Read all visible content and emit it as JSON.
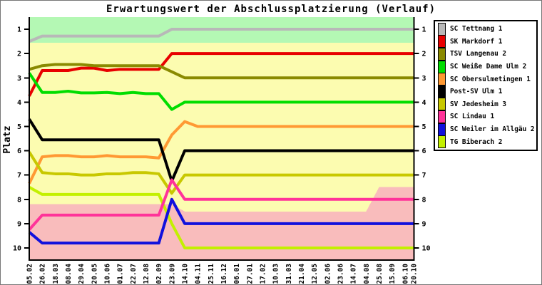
{
  "title": "Erwartungswert der Abschlussplatzierung (Verlauf)",
  "ylabel": "Platz",
  "chart_data": {
    "type": "line",
    "title": "Erwartungswert der Abschlussplatzierung (Verlauf)",
    "y_axis_label": "Platz",
    "y_inverted": true,
    "ylim_platz": [
      0.5,
      10.5
    ],
    "y_ticks": [
      1,
      2,
      3,
      4,
      5,
      6,
      7,
      8,
      9,
      10
    ],
    "y_ticks_both_sides": true,
    "grid": false,
    "legend_position": "top-right",
    "x_tick_labels": [
      "05.02",
      "26.02",
      "18.03",
      "08.04",
      "29.04",
      "20.05",
      "10.06",
      "01.07",
      "22.07",
      "12.08",
      "02.09",
      "23.09",
      "14.10",
      "04.11",
      "25.11",
      "16.12",
      "06.01",
      "27.01",
      "17.02",
      "10.03",
      "31.03",
      "21.04",
      "12.05",
      "02.06",
      "23.06",
      "14.07",
      "04.08",
      "25.08",
      "15.09",
      "06.10",
      "20.10"
    ],
    "x_day_offsets": [
      0,
      21,
      42,
      63,
      84,
      105,
      126,
      147,
      168,
      189,
      210,
      231,
      252,
      273,
      294,
      315,
      336,
      357,
      378,
      399,
      420,
      441,
      462,
      483,
      504,
      525,
      546,
      567,
      588,
      609,
      623
    ],
    "zones": [
      {
        "name": "midfield-zone",
        "color": "#fcfcb0",
        "from_platz": 0.5,
        "to_platz": 10.5
      },
      {
        "name": "promotion-zone",
        "color": "#b4f8b4",
        "from_platz": 0.5,
        "to_platz": 1.55
      },
      {
        "name": "relegation-zone",
        "color": "#f9bcbc",
        "to_platz": 10.5,
        "top_edge_day_platz": [
          [
            0,
            8.2
          ],
          [
            231,
            8.2
          ],
          [
            252,
            8.5
          ],
          [
            546,
            8.5
          ],
          [
            567,
            7.5
          ],
          [
            623,
            7.5
          ]
        ]
      }
    ],
    "series": [
      {
        "name": "SC Tettnang 1",
        "color": "#b8b8b8",
        "values": [
          1.5,
          1.28,
          1.28,
          1.28,
          1.28,
          1.28,
          1.28,
          1.28,
          1.28,
          1.28,
          1.28,
          1,
          1,
          1,
          1,
          1,
          1,
          1,
          1,
          1,
          1,
          1,
          1,
          1,
          1,
          1,
          1,
          1,
          1,
          1,
          1
        ]
      },
      {
        "name": "SK Markdorf 1",
        "color": "#e80000",
        "values": [
          3.75,
          2.7,
          2.7,
          2.7,
          2.6,
          2.6,
          2.7,
          2.65,
          2.65,
          2.65,
          2.65,
          2,
          2,
          2,
          2,
          2,
          2,
          2,
          2,
          2,
          2,
          2,
          2,
          2,
          2,
          2,
          2,
          2,
          2,
          2,
          2
        ]
      },
      {
        "name": "TSV Langenau 2",
        "color": "#8a8a00",
        "values": [
          2.65,
          2.5,
          2.45,
          2.45,
          2.45,
          2.5,
          2.5,
          2.5,
          2.5,
          2.5,
          2.5,
          2.75,
          3,
          3,
          3,
          3,
          3,
          3,
          3,
          3,
          3,
          3,
          3,
          3,
          3,
          3,
          3,
          3,
          3,
          3,
          3
        ]
      },
      {
        "name": "SC Weiße Dame Ulm 2",
        "color": "#00dd00",
        "values": [
          2.8,
          3.6,
          3.6,
          3.55,
          3.62,
          3.62,
          3.6,
          3.65,
          3.6,
          3.65,
          3.65,
          4.3,
          4,
          4,
          4,
          4,
          4,
          4,
          4,
          4,
          4,
          4,
          4,
          4,
          4,
          4,
          4,
          4,
          4,
          4,
          4
        ]
      },
      {
        "name": "SC Obersulmetingen 1",
        "color": "#ff9933",
        "values": [
          7.35,
          6.25,
          6.2,
          6.2,
          6.25,
          6.25,
          6.2,
          6.25,
          6.25,
          6.25,
          6.3,
          5.35,
          4.8,
          5,
          5,
          5,
          5,
          5,
          5,
          5,
          5,
          5,
          5,
          5,
          5,
          5,
          5,
          5,
          5,
          5,
          5
        ]
      },
      {
        "name": "Post-SV Ulm 1",
        "color": "#000000",
        "values": [
          4.7,
          5.55,
          5.55,
          5.55,
          5.55,
          5.55,
          5.55,
          5.55,
          5.55,
          5.55,
          5.55,
          7.25,
          6,
          6,
          6,
          6,
          6,
          6,
          6,
          6,
          6,
          6,
          6,
          6,
          6,
          6,
          6,
          6,
          6,
          6,
          6
        ]
      },
      {
        "name": "SV Jedesheim 3",
        "color": "#c8c800",
        "values": [
          6.05,
          6.9,
          6.95,
          6.95,
          7,
          7,
          6.95,
          6.95,
          6.9,
          6.9,
          6.95,
          7.75,
          7,
          7,
          7,
          7,
          7,
          7,
          7,
          7,
          7,
          7,
          7,
          7,
          7,
          7,
          7,
          7,
          7,
          7,
          7
        ]
      },
      {
        "name": "SC Lindau 1",
        "color": "#ff3399",
        "values": [
          9.25,
          8.65,
          8.65,
          8.65,
          8.65,
          8.65,
          8.65,
          8.65,
          8.65,
          8.65,
          8.65,
          7.2,
          8,
          8,
          8,
          8,
          8,
          8,
          8,
          8,
          8,
          8,
          8,
          8,
          8,
          8,
          8,
          8,
          8,
          8,
          8
        ]
      },
      {
        "name": "SC Weiler im Allgäu 2",
        "color": "#1111dd",
        "values": [
          9.35,
          9.8,
          9.8,
          9.8,
          9.8,
          9.8,
          9.8,
          9.8,
          9.8,
          9.8,
          9.8,
          8,
          9,
          9,
          9,
          9,
          9,
          9,
          9,
          9,
          9,
          9,
          9,
          9,
          9,
          9,
          9,
          9,
          9,
          9,
          9
        ]
      },
      {
        "name": "TG Biberach 2",
        "color": "#c3f000",
        "values": [
          7.5,
          7.8,
          7.8,
          7.8,
          7.8,
          7.8,
          7.8,
          7.8,
          7.8,
          7.8,
          7.8,
          9,
          10,
          10,
          10,
          10,
          10,
          10,
          10,
          10,
          10,
          10,
          10,
          10,
          10,
          10,
          10,
          10,
          10,
          10,
          10
        ]
      }
    ]
  }
}
